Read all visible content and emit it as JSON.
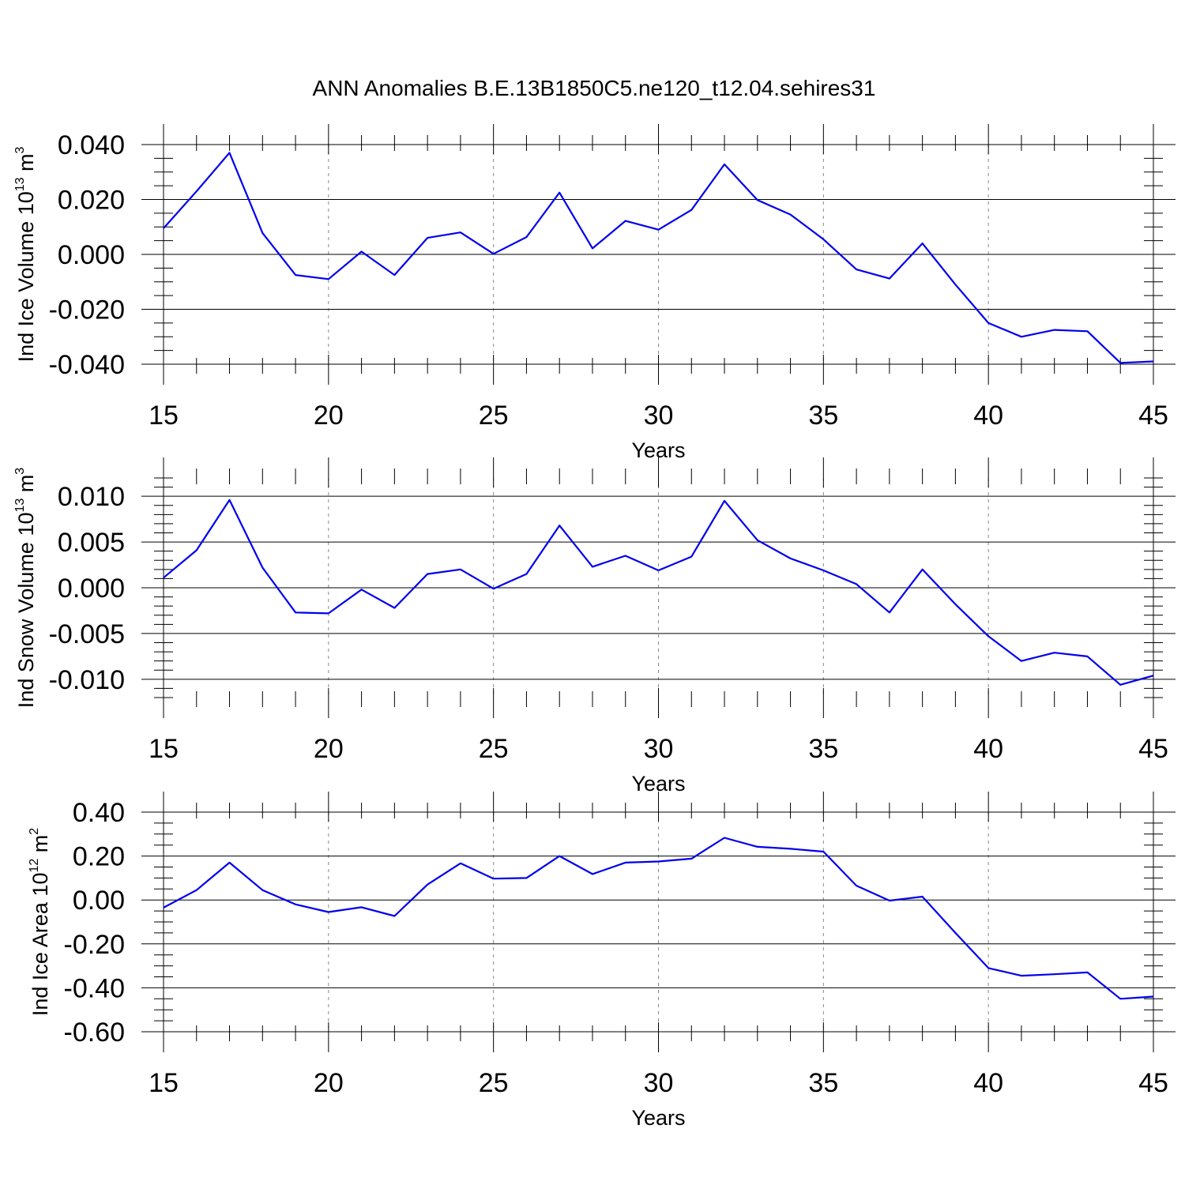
{
  "figure": {
    "title": "ANN Anomalies B.E.13B1850C5.ne120_t12.04.sehires31"
  },
  "style": {
    "line_color": "#0000ee",
    "axis_color": "#000000",
    "grid_color": "#888888"
  },
  "chart_data": [
    {
      "type": "line",
      "xlabel": "Years",
      "ylabel": {
        "text": "Ind Ice Volume 10",
        "sup": "13",
        "unit": " m",
        "unit_sup": "3"
      },
      "xlim": [
        15,
        45
      ],
      "ylim": [
        -0.04,
        0.04
      ],
      "x_ticks": [
        15,
        20,
        25,
        30,
        35,
        40,
        45
      ],
      "x_tick_labels": [
        "15",
        "20",
        "25",
        "30",
        "35",
        "40",
        "45"
      ],
      "y_ticks": [
        -0.04,
        -0.02,
        0.0,
        0.02,
        0.04
      ],
      "y_tick_labels": [
        "-0.040",
        "-0.020",
        "0.000",
        "0.020",
        "0.040"
      ],
      "y_minor_step": 0.005,
      "x_minor_step": 1,
      "grid": {
        "vertical_dashed": [
          20,
          25,
          30,
          35,
          40
        ]
      },
      "x": [
        15,
        16,
        17,
        18,
        19,
        20,
        21,
        22,
        23,
        24,
        25,
        26,
        27,
        28,
        29,
        30,
        31,
        32,
        33,
        34,
        35,
        36,
        37,
        38,
        39,
        40,
        41,
        42,
        43,
        44,
        45
      ],
      "series": [
        {
          "values": [
            0.0095,
            0.023,
            0.037,
            0.0078,
            -0.0075,
            -0.009,
            0.001,
            -0.0075,
            0.006,
            0.008,
            0.0002,
            0.0063,
            0.0225,
            0.0022,
            0.0122,
            0.009,
            0.0162,
            0.0328,
            0.0198,
            0.0145,
            0.0055,
            -0.0055,
            -0.0088,
            0.004,
            -0.011,
            -0.025,
            -0.03,
            -0.0275,
            -0.028,
            -0.0395,
            -0.039
          ]
        }
      ]
    },
    {
      "type": "line",
      "xlabel": "Years",
      "ylabel": {
        "text": "Ind Snow Volume 10",
        "sup": "13",
        "unit": " m",
        "unit_sup": "3"
      },
      "xlim": [
        15,
        45
      ],
      "ylim": [
        -0.012,
        0.012
      ],
      "x_ticks": [
        15,
        20,
        25,
        30,
        35,
        40,
        45
      ],
      "x_tick_labels": [
        "15",
        "20",
        "25",
        "30",
        "35",
        "40",
        "45"
      ],
      "y_ticks": [
        -0.01,
        -0.005,
        0.0,
        0.005,
        0.01
      ],
      "y_tick_labels": [
        "-0.010",
        "-0.005",
        "0.000",
        "0.005",
        "0.010"
      ],
      "y_minor_step": 0.001,
      "x_minor_step": 1,
      "grid": {
        "vertical_dashed": [
          20,
          25,
          30,
          35,
          40
        ]
      },
      "x": [
        15,
        16,
        17,
        18,
        19,
        20,
        21,
        22,
        23,
        24,
        25,
        26,
        27,
        28,
        29,
        30,
        31,
        32,
        33,
        34,
        35,
        36,
        37,
        38,
        39,
        40,
        41,
        42,
        43,
        44,
        45
      ],
      "series": [
        {
          "values": [
            0.0011,
            0.0041,
            0.0096,
            0.0022,
            -0.0027,
            -0.0028,
            -0.0002,
            -0.0022,
            0.0015,
            0.002,
            -0.0001,
            0.0015,
            0.0068,
            0.0023,
            0.0035,
            0.0019,
            0.0034,
            0.0095,
            0.0052,
            0.0032,
            0.0019,
            0.0004,
            -0.0027,
            0.002,
            -0.0018,
            -0.0053,
            -0.008,
            -0.0071,
            -0.0075,
            -0.0106,
            -0.0096
          ]
        }
      ]
    },
    {
      "type": "line",
      "xlabel": "Years",
      "ylabel": {
        "text": "Ind Ice Area 10",
        "sup": "12",
        "unit": " m",
        "unit_sup": "2"
      },
      "xlim": [
        15,
        45
      ],
      "ylim": [
        -0.6,
        0.4
      ],
      "x_ticks": [
        15,
        20,
        25,
        30,
        35,
        40,
        45
      ],
      "x_tick_labels": [
        "15",
        "20",
        "25",
        "30",
        "35",
        "40",
        "45"
      ],
      "y_ticks": [
        -0.6,
        -0.4,
        -0.2,
        0.0,
        0.2,
        0.4
      ],
      "y_tick_labels": [
        "-0.60",
        "-0.40",
        "-0.20",
        "0.00",
        "0.20",
        "0.40"
      ],
      "y_minor_step": 0.05,
      "x_minor_step": 1,
      "grid": {
        "vertical_dashed": [
          20,
          25,
          30,
          35,
          40
        ]
      },
      "x": [
        15,
        16,
        17,
        18,
        19,
        20,
        21,
        22,
        23,
        24,
        25,
        26,
        27,
        28,
        29,
        30,
        31,
        32,
        33,
        34,
        35,
        36,
        37,
        38,
        39,
        40,
        41,
        42,
        43,
        44,
        45
      ],
      "series": [
        {
          "values": [
            -0.035,
            0.045,
            0.17,
            0.045,
            -0.02,
            -0.055,
            -0.033,
            -0.073,
            0.07,
            0.167,
            0.097,
            0.1,
            0.2,
            0.118,
            0.17,
            0.175,
            0.188,
            0.283,
            0.242,
            0.233,
            0.22,
            0.065,
            -0.003,
            0.015,
            -0.15,
            -0.31,
            -0.345,
            -0.338,
            -0.33,
            -0.45,
            -0.44
          ]
        }
      ]
    }
  ]
}
